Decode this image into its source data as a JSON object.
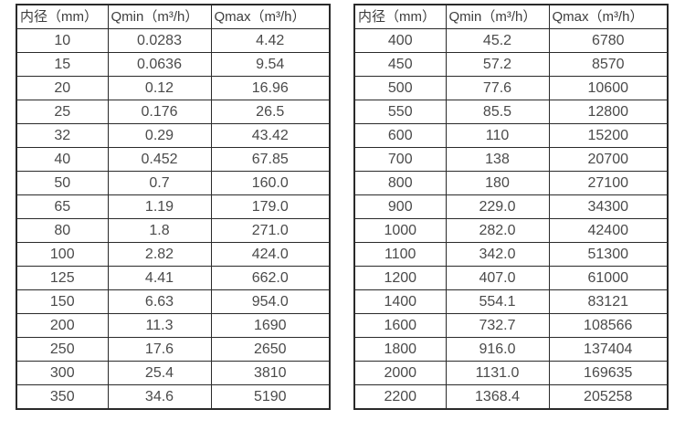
{
  "colors": {
    "background": "#ffffff",
    "border": "#2a2a2a",
    "header_text": "#3d3d3d",
    "cell_text": "#4a4a4a"
  },
  "tables": [
    {
      "name": "flow-spec-table-small-diameters",
      "headers": [
        "内径（mm）",
        "Qmin（m³/h）",
        "Qmax（m³/h）"
      ],
      "rows": [
        [
          "10",
          "0.0283",
          "4.42"
        ],
        [
          "15",
          "0.0636",
          "9.54"
        ],
        [
          "20",
          "0.12",
          "16.96"
        ],
        [
          "25",
          "0.176",
          "26.5"
        ],
        [
          "32",
          "0.29",
          "43.42"
        ],
        [
          "40",
          "0.452",
          "67.85"
        ],
        [
          "50",
          "0.7",
          "160.0"
        ],
        [
          "65",
          "1.19",
          "179.0"
        ],
        [
          "80",
          "1.8",
          "271.0"
        ],
        [
          "100",
          "2.82",
          "424.0"
        ],
        [
          "125",
          "4.41",
          "662.0"
        ],
        [
          "150",
          "6.63",
          "954.0"
        ],
        [
          "200",
          "11.3",
          "1690"
        ],
        [
          "250",
          "17.6",
          "2650"
        ],
        [
          "300",
          "25.4",
          "3810"
        ],
        [
          "350",
          "34.6",
          "5190"
        ]
      ]
    },
    {
      "name": "flow-spec-table-large-diameters",
      "headers": [
        "内径（mm）",
        "Qmin（m³/h）",
        "Qmax（m³/h）"
      ],
      "rows": [
        [
          "400",
          "45.2",
          "6780"
        ],
        [
          "450",
          "57.2",
          "8570"
        ],
        [
          "500",
          "77.6",
          "10600"
        ],
        [
          "550",
          "85.5",
          "12800"
        ],
        [
          "600",
          "110",
          "15200"
        ],
        [
          "700",
          "138",
          "20700"
        ],
        [
          "800",
          "180",
          "27100"
        ],
        [
          "900",
          "229.0",
          "34300"
        ],
        [
          "1000",
          "282.0",
          "42400"
        ],
        [
          "1100",
          "342.0",
          "51300"
        ],
        [
          "1200",
          "407.0",
          "61000"
        ],
        [
          "1400",
          "554.1",
          "83121"
        ],
        [
          "1600",
          "732.7",
          "108566"
        ],
        [
          "1800",
          "916.0",
          "137404"
        ],
        [
          "2000",
          "1131.0",
          "169635"
        ],
        [
          "2200",
          "1368.4",
          "205258"
        ]
      ]
    }
  ],
  "chart_data": [
    {
      "type": "table",
      "title": "",
      "columns": [
        "内径（mm）",
        "Qmin（m³/h）",
        "Qmax（m³/h）"
      ],
      "inner_diameter_mm": [
        10,
        15,
        20,
        25,
        32,
        40,
        50,
        65,
        80,
        100,
        125,
        150,
        200,
        250,
        300,
        350
      ],
      "qmin_m3h": [
        0.0283,
        0.0636,
        0.12,
        0.176,
        0.29,
        0.452,
        0.7,
        1.19,
        1.8,
        2.82,
        4.41,
        6.63,
        11.3,
        17.6,
        25.4,
        34.6
      ],
      "qmax_m3h": [
        4.42,
        9.54,
        16.96,
        26.5,
        43.42,
        67.85,
        160.0,
        179.0,
        271.0,
        424.0,
        662.0,
        954.0,
        1690,
        2650,
        3810,
        5190
      ]
    },
    {
      "type": "table",
      "title": "",
      "columns": [
        "内径（mm）",
        "Qmin（m³/h）",
        "Qmax（m³/h）"
      ],
      "inner_diameter_mm": [
        400,
        450,
        500,
        550,
        600,
        700,
        800,
        900,
        1000,
        1100,
        1200,
        1400,
        1600,
        1800,
        2000,
        2200
      ],
      "qmin_m3h": [
        45.2,
        57.2,
        77.6,
        85.5,
        110,
        138,
        180,
        229.0,
        282.0,
        342.0,
        407.0,
        554.1,
        732.7,
        916.0,
        1131.0,
        1368.4
      ],
      "qmax_m3h": [
        6780,
        8570,
        10600,
        12800,
        15200,
        20700,
        27100,
        34300,
        42400,
        51300,
        61000,
        83121,
        108566,
        137404,
        169635,
        205258
      ]
    }
  ]
}
